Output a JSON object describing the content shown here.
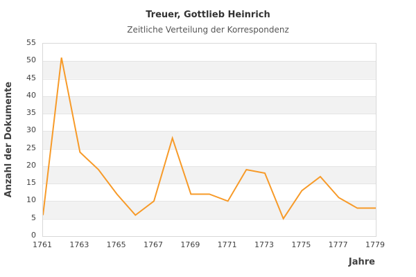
{
  "chart_data": {
    "type": "line",
    "title": "Treuer, Gottlieb Heinrich",
    "subtitle": "Zeitliche Verteilung der Korrespondenz",
    "xlabel": "Jahre",
    "ylabel": "Anzahl der Dokumente",
    "x": [
      1761,
      1762,
      1763,
      1764,
      1765,
      1766,
      1767,
      1768,
      1769,
      1770,
      1771,
      1772,
      1773,
      1774,
      1775,
      1776,
      1777,
      1778,
      1779
    ],
    "values": [
      6,
      51,
      24,
      19,
      12,
      6,
      10,
      28,
      12,
      12,
      10,
      19,
      18,
      5,
      13,
      17,
      11,
      8,
      8
    ],
    "ylim": [
      0,
      55
    ],
    "ytick_step": 5,
    "xtick_labels": [
      "1761",
      "1763",
      "1765",
      "1767",
      "1769",
      "1771",
      "1773",
      "1775",
      "1777",
      "1779"
    ],
    "legend": "none",
    "grid": "horizontal gridlines every 5 units with alternating gray bands",
    "colors": {
      "line": "#f79a28",
      "band": "#f2f2f2",
      "gridline": "#e4e4e4",
      "plot_border": "#d8d8d8",
      "title": "#333333",
      "subtitle": "#555555",
      "axis_title": "#404040",
      "tick_label": "#404040",
      "background": "#ffffff"
    }
  }
}
